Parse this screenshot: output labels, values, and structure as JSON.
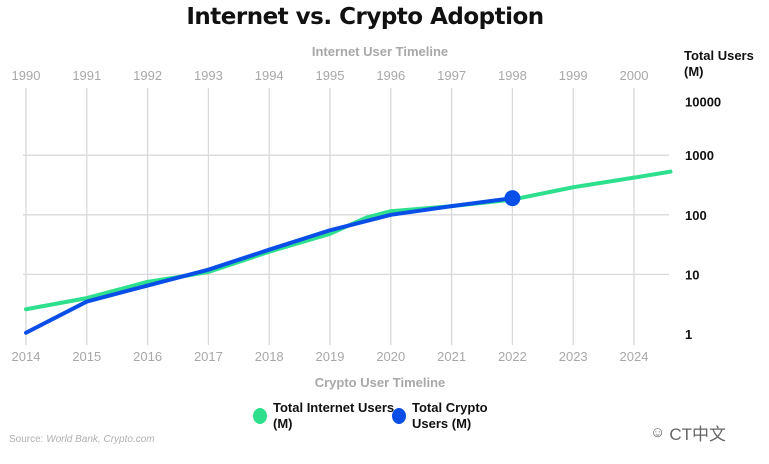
{
  "chart_data": {
    "type": "line",
    "title": "Internet vs. Crypto Adoption",
    "top_axis_label": "Internet User Timeline",
    "top_axis_ticks": [
      "1990",
      "1991",
      "1992",
      "1993",
      "1994",
      "1995",
      "1996",
      "1997",
      "1998",
      "1999",
      "2000"
    ],
    "xlabel": "Crypto User Timeline",
    "x_ticks": [
      "2014",
      "2015",
      "2016",
      "2017",
      "2018",
      "2019",
      "2020",
      "2021",
      "2022",
      "2023",
      "2024"
    ],
    "xlim": [
      2014,
      2024.6
    ],
    "ylabel": "Total Users (M)",
    "yscale": "log",
    "ylim": [
      1,
      10000
    ],
    "y_ticks": [
      "1",
      "10",
      "100",
      "1000",
      "10000"
    ],
    "grid": true,
    "legend_position": "bottom",
    "series": [
      {
        "name": "Total Internet Users (M)",
        "color": "#2ee08e",
        "x": [
          2014,
          2015,
          2016,
          2016.5,
          2017,
          2018,
          2019,
          2019.6,
          2020,
          2021,
          2022,
          2023,
          2024,
          2024.6
        ],
        "y": [
          2.6,
          4,
          7.5,
          9,
          11,
          24,
          48,
          90,
          115,
          140,
          180,
          290,
          420,
          530
        ]
      },
      {
        "name": "Total Crypto Users (M)",
        "color": "#0a4ee8",
        "x": [
          2014,
          2015,
          2016,
          2017,
          2018,
          2019,
          2020,
          2021,
          2022
        ],
        "y": [
          1.05,
          3.5,
          6.5,
          12,
          26,
          55,
          100,
          140,
          190
        ],
        "end_marker": true
      }
    ]
  },
  "source": {
    "label": "Source:",
    "text": "World Bank, Crypto.com"
  },
  "watermark": "CT中文"
}
